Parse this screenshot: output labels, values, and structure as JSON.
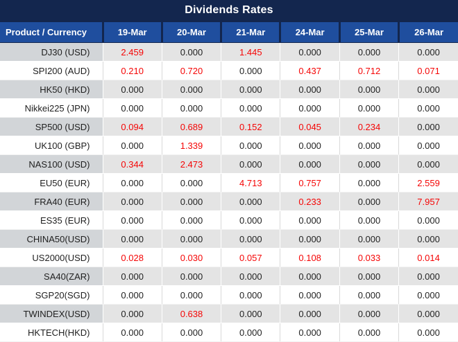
{
  "title": "Dividends Rates",
  "colors": {
    "title-bg": "#13264E",
    "header-bg": "#1F4E9E",
    "header-text": "#FFFFFF",
    "row-gray-label": "#D2D5D8",
    "row-gray-value": "#E4E4E4",
    "row-white": "#FFFFFF",
    "value-zero": "#1F1F1F",
    "value-nonzero": "#F50505"
  },
  "table": {
    "zero_value": "0.000",
    "header": [
      "Product / Currency",
      "19-Mar",
      "20-Mar",
      "21-Mar",
      "24-Mar",
      "25-Mar",
      "26-Mar"
    ],
    "rows": [
      {
        "label": "DJ30 (USD)",
        "values": [
          "2.459",
          "0.000",
          "1.445",
          "0.000",
          "0.000",
          "0.000"
        ]
      },
      {
        "label": "SPI200 (AUD)",
        "values": [
          "0.210",
          "0.720",
          "0.000",
          "0.437",
          "0.712",
          "0.071"
        ]
      },
      {
        "label": "HK50 (HKD)",
        "values": [
          "0.000",
          "0.000",
          "0.000",
          "0.000",
          "0.000",
          "0.000"
        ]
      },
      {
        "label": "Nikkei225 (JPN)",
        "values": [
          "0.000",
          "0.000",
          "0.000",
          "0.000",
          "0.000",
          "0.000"
        ]
      },
      {
        "label": "SP500 (USD)",
        "values": [
          "0.094",
          "0.689",
          "0.152",
          "0.045",
          "0.234",
          "0.000"
        ]
      },
      {
        "label": "UK100 (GBP)",
        "values": [
          "0.000",
          "1.339",
          "0.000",
          "0.000",
          "0.000",
          "0.000"
        ]
      },
      {
        "label": "NAS100 (USD)",
        "values": [
          "0.344",
          "2.473",
          "0.000",
          "0.000",
          "0.000",
          "0.000"
        ]
      },
      {
        "label": "EU50 (EUR)",
        "values": [
          "0.000",
          "0.000",
          "4.713",
          "0.757",
          "0.000",
          "2.559"
        ]
      },
      {
        "label": "FRA40 (EUR)",
        "values": [
          "0.000",
          "0.000",
          "0.000",
          "0.233",
          "0.000",
          "7.957"
        ]
      },
      {
        "label": "ES35 (EUR)",
        "values": [
          "0.000",
          "0.000",
          "0.000",
          "0.000",
          "0.000",
          "0.000"
        ]
      },
      {
        "label": "CHINA50(USD)",
        "values": [
          "0.000",
          "0.000",
          "0.000",
          "0.000",
          "0.000",
          "0.000"
        ]
      },
      {
        "label": "US2000(USD)",
        "values": [
          "0.028",
          "0.030",
          "0.057",
          "0.108",
          "0.033",
          "0.014"
        ]
      },
      {
        "label": "SA40(ZAR)",
        "values": [
          "0.000",
          "0.000",
          "0.000",
          "0.000",
          "0.000",
          "0.000"
        ]
      },
      {
        "label": "SGP20(SGD)",
        "values": [
          "0.000",
          "0.000",
          "0.000",
          "0.000",
          "0.000",
          "0.000"
        ]
      },
      {
        "label": "TWINDEX(USD)",
        "values": [
          "0.000",
          "0.638",
          "0.000",
          "0.000",
          "0.000",
          "0.000"
        ]
      },
      {
        "label": "HKTECH(HKD)",
        "values": [
          "0.000",
          "0.000",
          "0.000",
          "0.000",
          "0.000",
          "0.000"
        ]
      }
    ]
  }
}
